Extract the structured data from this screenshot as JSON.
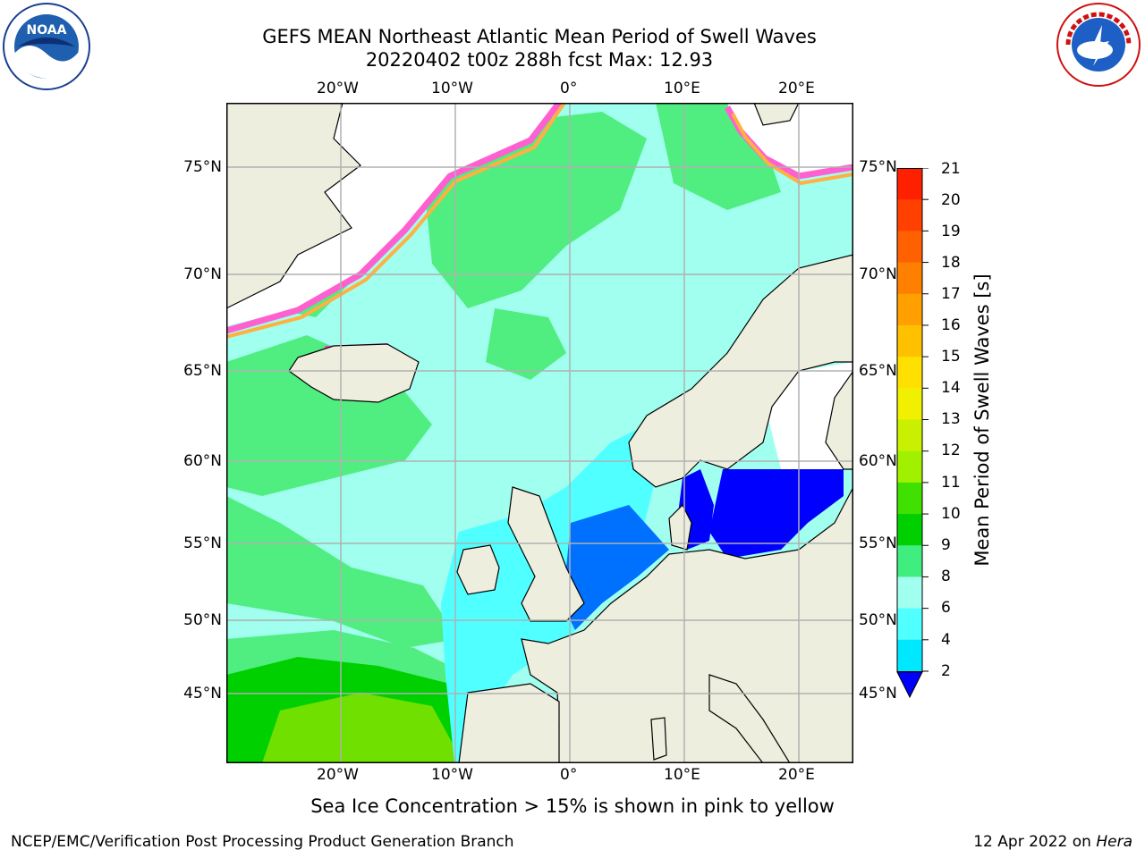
{
  "title": {
    "line1": "GEFS MEAN Northeast Atlantic Mean Period of Swell Waves",
    "line2": "20220402 t00z 288h fcst   Max: 12.93"
  },
  "logos": {
    "left": "NOAA",
    "right": "NATIONAL WEATHER SERVICE"
  },
  "map": {
    "lon_labels": [
      "20°W",
      "10°W",
      "0°",
      "10°E",
      "20°E"
    ],
    "lat_labels": [
      "75°N",
      "70°N",
      "65°N",
      "60°N",
      "55°N",
      "50°N",
      "45°N"
    ],
    "colors": {
      "land": "#eeeedf",
      "ice_free_white": "#ffffff",
      "grid": "#b0b0b0",
      "coast": "#000000"
    }
  },
  "colorbar": {
    "title": "Mean Period of Swell Waves [s]",
    "ticks": [
      "21",
      "20",
      "19",
      "18",
      "17",
      "16",
      "15",
      "14",
      "13",
      "12",
      "11",
      "10",
      "9",
      "8",
      "6",
      "4",
      "2"
    ],
    "colors": [
      "#ff2000",
      "#ff4000",
      "#ff6000",
      "#ff8000",
      "#ffa000",
      "#ffc000",
      "#ffe000",
      "#f0f000",
      "#c8f000",
      "#a0f000",
      "#40e000",
      "#00d000",
      "#40ee80",
      "#a0ffef",
      "#50ffff",
      "#00e8ff",
      "#0070ff"
    ],
    "extend_color": "#0000ff"
  },
  "caption": "Sea Ice Concentration > 15% is shown in pink to yellow",
  "footer": {
    "left": "NCEP/EMC/Verification Post Processing Product Generation Branch",
    "right_prefix": "12 Apr 2022 on ",
    "right_host": "Hera"
  }
}
